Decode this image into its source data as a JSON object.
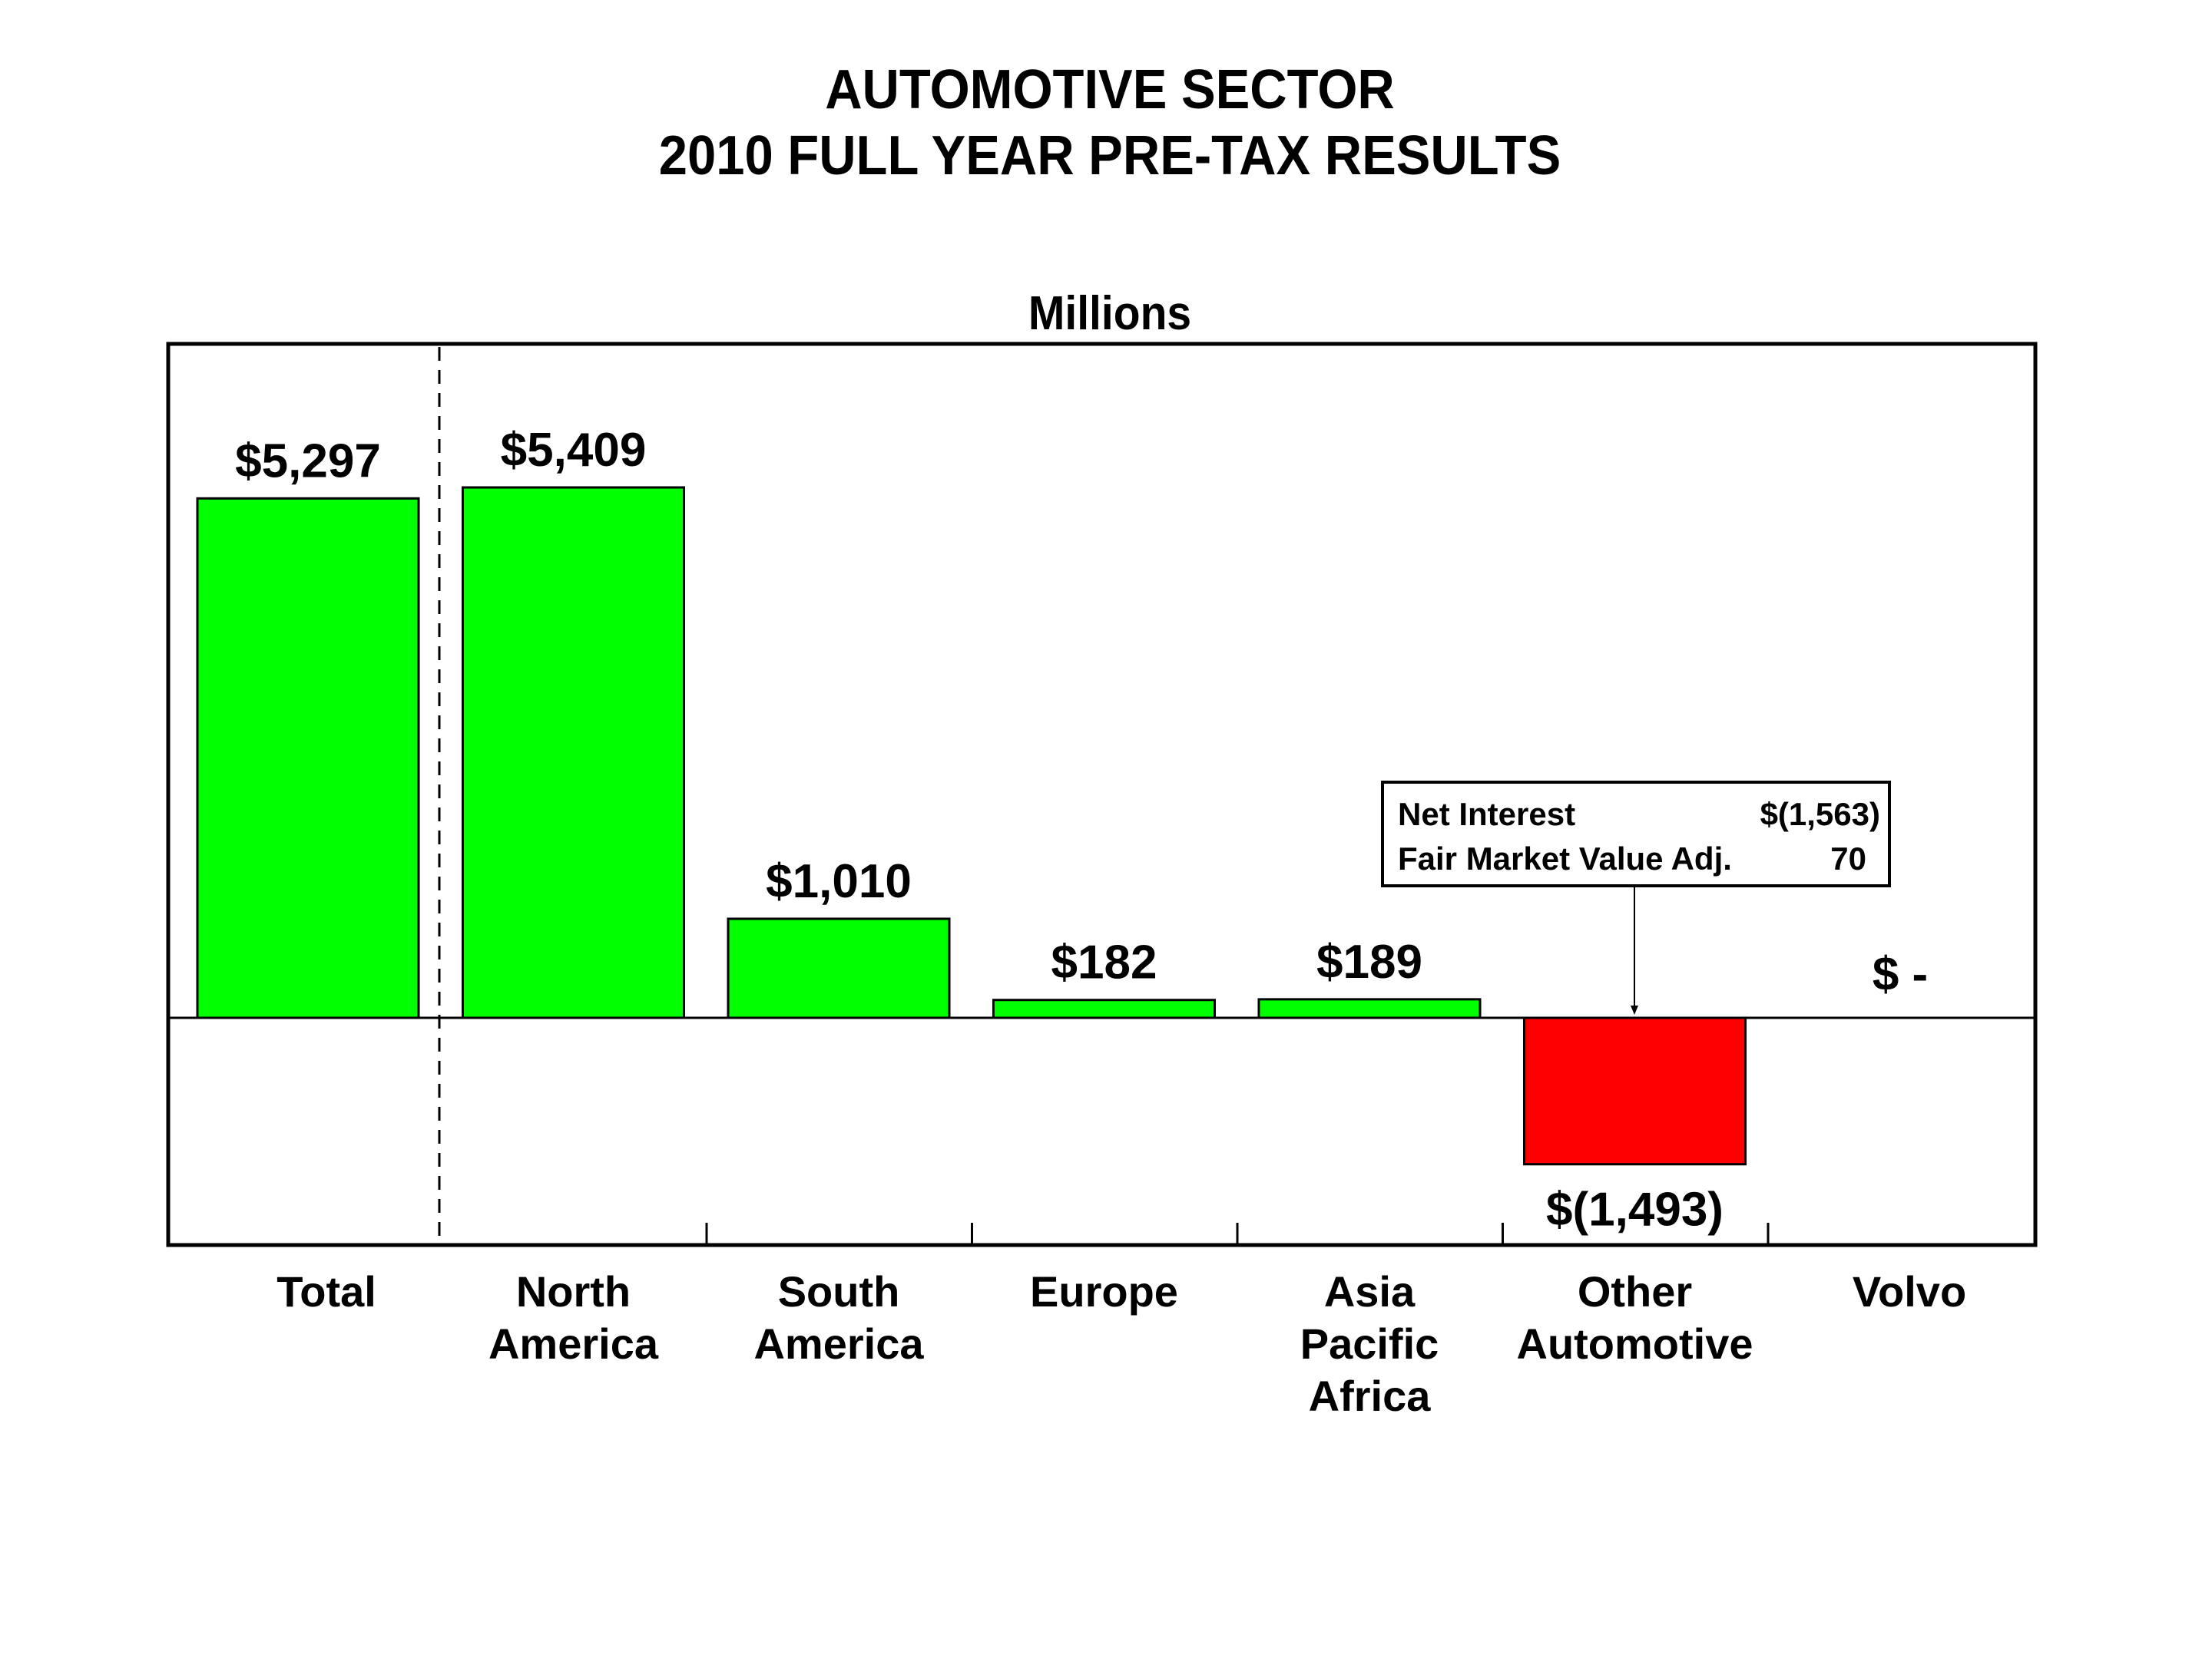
{
  "chart_data": {
    "type": "bar",
    "title": "AUTOMOTIVE SECTOR",
    "subtitle": "2010 FULL YEAR PRE-TAX RESULTS",
    "units_label": "Millions",
    "xlabel": "",
    "ylabel": "",
    "ylim": [
      -2700,
      8300
    ],
    "grid": false,
    "categories": [
      [
        "Total"
      ],
      [
        "North",
        "America"
      ],
      [
        "South",
        "America"
      ],
      [
        "Europe"
      ],
      [
        "Asia",
        "Pacific",
        "Africa"
      ],
      [
        "Other",
        "Automotive"
      ],
      [
        "Volvo"
      ]
    ],
    "values": [
      5297,
      5409,
      1010,
      182,
      189,
      -1493,
      0
    ],
    "value_labels": [
      "$5,297",
      "$5,409",
      "$1,010",
      "$182",
      "$189",
      "$(1,493)",
      "$ -"
    ],
    "colors": {
      "positive": "#00ff00",
      "negative": "#ff0000",
      "outline": "#000000"
    },
    "separator_after_category": "Total",
    "annotation": {
      "target_category": "Other Automotive",
      "rows": [
        {
          "label": "Net Interest",
          "value": "$(1,563)"
        },
        {
          "label": "Fair Market Value Adj.",
          "value": "70"
        }
      ]
    }
  }
}
